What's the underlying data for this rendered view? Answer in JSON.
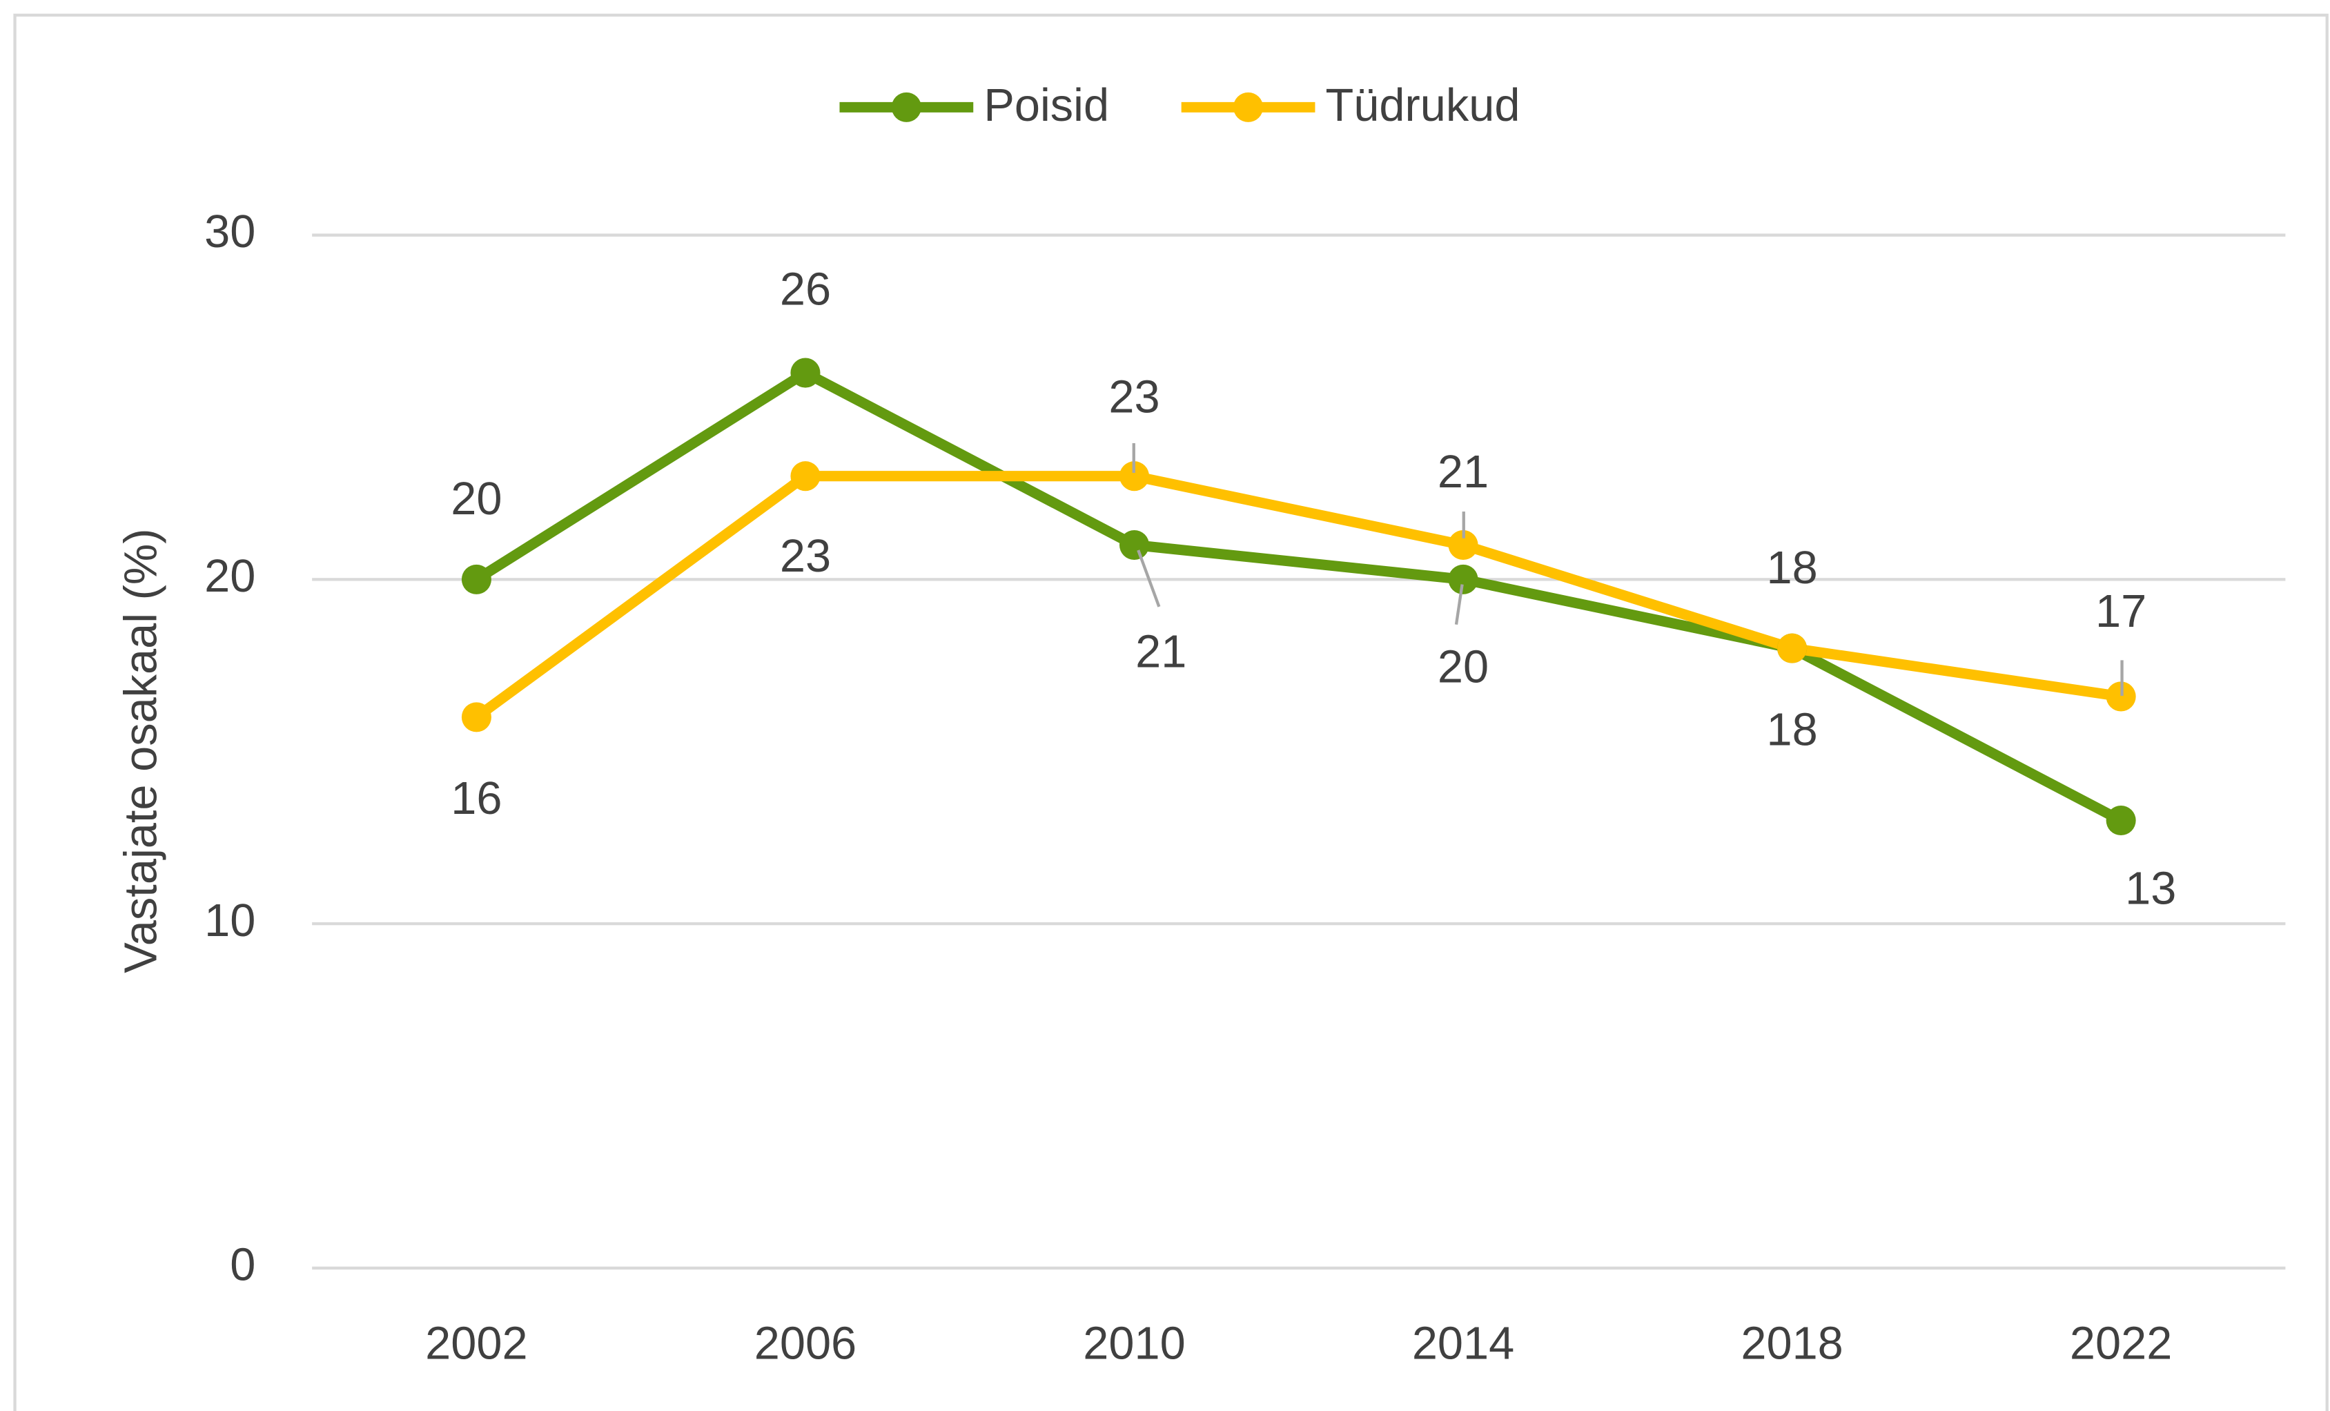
{
  "chart_data": {
    "type": "line",
    "y_label": "Vastajate osakaal (%)",
    "categories": [
      "2002",
      "2006",
      "2010",
      "2014",
      "2018",
      "2022"
    ],
    "series": [
      {
        "name": "Poisid",
        "color": "#639a10",
        "values": [
          20,
          26,
          21,
          20,
          18,
          13
        ]
      },
      {
        "name": "Tüdrukud",
        "color": "#ffc000",
        "values": [
          16,
          23,
          23,
          21,
          18,
          16.6
        ],
        "value_labels": [
          "16",
          "23",
          "23",
          "21",
          "18",
          "17"
        ]
      }
    ],
    "ylim": [
      0,
      30
    ],
    "yticks": [
      0,
      10,
      20,
      30
    ],
    "grid": true,
    "legend": "top"
  }
}
